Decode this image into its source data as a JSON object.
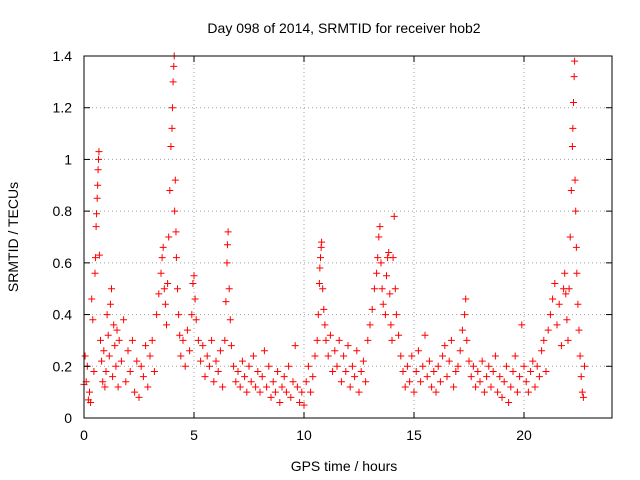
{
  "chart_data": {
    "type": "scatter",
    "title": "Day 098 of 2014, SRMTID for receiver hob2",
    "xlabel": "GPS time / hours",
    "ylabel": "SRMTID / TECUs",
    "xlim": [
      0,
      24
    ],
    "ylim": [
      0,
      1.4
    ],
    "x_ticks": [
      0,
      5,
      10,
      15,
      20
    ],
    "x_tick_labels": [
      "0",
      "5",
      "10",
      "15",
      "20"
    ],
    "y_ticks": [
      0,
      0.2,
      0.4,
      0.6,
      0.8,
      1.0,
      1.2,
      1.4
    ],
    "y_tick_labels": [
      "0",
      "0.2",
      "0.4",
      "0.6",
      "0.8",
      "1",
      "1.2",
      "1.4"
    ],
    "grid": true,
    "marker": "+",
    "color": "#ff0000",
    "series": [
      {
        "name": "SRMTID",
        "points": [
          [
            0.0,
            0.13
          ],
          [
            0.05,
            0.24
          ],
          [
            0.1,
            0.14
          ],
          [
            0.15,
            0.2
          ],
          [
            0.2,
            0.07
          ],
          [
            0.25,
            0.1
          ],
          [
            0.3,
            0.06
          ],
          [
            0.35,
            0.46
          ],
          [
            0.4,
            0.38
          ],
          [
            0.45,
            0.18
          ],
          [
            0.5,
            0.56
          ],
          [
            0.52,
            0.62
          ],
          [
            0.55,
            0.74
          ],
          [
            0.57,
            0.79
          ],
          [
            0.6,
            0.85
          ],
          [
            0.62,
            0.9
          ],
          [
            0.64,
            0.96
          ],
          [
            0.66,
            1.0
          ],
          [
            0.68,
            1.03
          ],
          [
            0.7,
            0.63
          ],
          [
            0.75,
            0.3
          ],
          [
            0.8,
            0.22
          ],
          [
            0.85,
            0.14
          ],
          [
            0.9,
            0.26
          ],
          [
            0.95,
            0.12
          ],
          [
            1.0,
            0.18
          ],
          [
            1.05,
            0.4
          ],
          [
            1.1,
            0.32
          ],
          [
            1.15,
            0.24
          ],
          [
            1.2,
            0.44
          ],
          [
            1.25,
            0.5
          ],
          [
            1.3,
            0.16
          ],
          [
            1.35,
            0.36
          ],
          [
            1.4,
            0.28
          ],
          [
            1.45,
            0.2
          ],
          [
            1.5,
            0.34
          ],
          [
            1.55,
            0.12
          ],
          [
            1.6,
            0.3
          ],
          [
            1.7,
            0.22
          ],
          [
            1.8,
            0.38
          ],
          [
            1.9,
            0.14
          ],
          [
            2.0,
            0.26
          ],
          [
            2.1,
            0.18
          ],
          [
            2.2,
            0.3
          ],
          [
            2.3,
            0.1
          ],
          [
            2.4,
            0.22
          ],
          [
            2.5,
            0.08
          ],
          [
            2.6,
            0.2
          ],
          [
            2.7,
            0.16
          ],
          [
            2.8,
            0.28
          ],
          [
            2.9,
            0.12
          ],
          [
            3.0,
            0.24
          ],
          [
            3.1,
            0.3
          ],
          [
            3.2,
            0.18
          ],
          [
            3.3,
            0.4
          ],
          [
            3.4,
            0.48
          ],
          [
            3.5,
            0.56
          ],
          [
            3.55,
            0.62
          ],
          [
            3.6,
            0.66
          ],
          [
            3.65,
            0.5
          ],
          [
            3.7,
            0.44
          ],
          [
            3.75,
            0.36
          ],
          [
            3.8,
            0.52
          ],
          [
            3.85,
            0.7
          ],
          [
            3.9,
            0.88
          ],
          [
            3.95,
            1.05
          ],
          [
            4.0,
            1.12
          ],
          [
            4.02,
            1.2
          ],
          [
            4.05,
            1.3
          ],
          [
            4.08,
            1.36
          ],
          [
            4.1,
            1.4
          ],
          [
            4.12,
            0.8
          ],
          [
            4.15,
            0.92
          ],
          [
            4.18,
            0.72
          ],
          [
            4.2,
            0.62
          ],
          [
            4.25,
            0.5
          ],
          [
            4.3,
            0.4
          ],
          [
            4.35,
            0.32
          ],
          [
            4.4,
            0.24
          ],
          [
            4.5,
            0.3
          ],
          [
            4.6,
            0.2
          ],
          [
            4.7,
            0.34
          ],
          [
            4.8,
            0.26
          ],
          [
            4.9,
            0.4
          ],
          [
            4.95,
            0.52
          ],
          [
            5.0,
            0.55
          ],
          [
            5.05,
            0.46
          ],
          [
            5.1,
            0.38
          ],
          [
            5.2,
            0.3
          ],
          [
            5.3,
            0.22
          ],
          [
            5.4,
            0.28
          ],
          [
            5.5,
            0.16
          ],
          [
            5.6,
            0.24
          ],
          [
            5.7,
            0.2
          ],
          [
            5.8,
            0.3
          ],
          [
            5.9,
            0.14
          ],
          [
            6.0,
            0.22
          ],
          [
            6.1,
            0.18
          ],
          [
            6.2,
            0.26
          ],
          [
            6.3,
            0.12
          ],
          [
            6.4,
            0.3
          ],
          [
            6.45,
            0.45
          ],
          [
            6.5,
            0.6
          ],
          [
            6.52,
            0.67
          ],
          [
            6.55,
            0.72
          ],
          [
            6.6,
            0.5
          ],
          [
            6.65,
            0.38
          ],
          [
            6.7,
            0.28
          ],
          [
            6.8,
            0.2
          ],
          [
            6.9,
            0.14
          ],
          [
            7.0,
            0.18
          ],
          [
            7.1,
            0.12
          ],
          [
            7.2,
            0.22
          ],
          [
            7.3,
            0.16
          ],
          [
            7.4,
            0.1
          ],
          [
            7.5,
            0.2
          ],
          [
            7.6,
            0.14
          ],
          [
            7.7,
            0.24
          ],
          [
            7.8,
            0.12
          ],
          [
            7.9,
            0.18
          ],
          [
            8.0,
            0.1
          ],
          [
            8.1,
            0.16
          ],
          [
            8.2,
            0.26
          ],
          [
            8.3,
            0.12
          ],
          [
            8.4,
            0.2
          ],
          [
            8.5,
            0.08
          ],
          [
            8.6,
            0.14
          ],
          [
            8.7,
            0.1
          ],
          [
            8.8,
            0.18
          ],
          [
            8.9,
            0.06
          ],
          [
            9.0,
            0.12
          ],
          [
            9.1,
            0.16
          ],
          [
            9.2,
            0.1
          ],
          [
            9.3,
            0.2
          ],
          [
            9.4,
            0.08
          ],
          [
            9.5,
            0.14
          ],
          [
            9.6,
            0.28
          ],
          [
            9.7,
            0.12
          ],
          [
            9.8,
            0.06
          ],
          [
            9.9,
            0.1
          ],
          [
            10.0,
            0.05
          ],
          [
            10.1,
            0.14
          ],
          [
            10.2,
            0.2
          ],
          [
            10.3,
            0.1
          ],
          [
            10.4,
            0.16
          ],
          [
            10.5,
            0.24
          ],
          [
            10.6,
            0.3
          ],
          [
            10.65,
            0.4
          ],
          [
            10.7,
            0.52
          ],
          [
            10.72,
            0.58
          ],
          [
            10.75,
            0.62
          ],
          [
            10.78,
            0.66
          ],
          [
            10.8,
            0.68
          ],
          [
            10.85,
            0.5
          ],
          [
            10.9,
            0.42
          ],
          [
            10.95,
            0.36
          ],
          [
            11.0,
            0.3
          ],
          [
            11.1,
            0.24
          ],
          [
            11.2,
            0.32
          ],
          [
            11.3,
            0.18
          ],
          [
            11.4,
            0.26
          ],
          [
            11.5,
            0.2
          ],
          [
            11.6,
            0.3
          ],
          [
            11.7,
            0.14
          ],
          [
            11.8,
            0.24
          ],
          [
            11.9,
            0.18
          ],
          [
            12.0,
            0.28
          ],
          [
            12.1,
            0.12
          ],
          [
            12.2,
            0.2
          ],
          [
            12.3,
            0.16
          ],
          [
            12.4,
            0.26
          ],
          [
            12.5,
            0.1
          ],
          [
            12.6,
            0.18
          ],
          [
            12.7,
            0.22
          ],
          [
            12.8,
            0.14
          ],
          [
            12.9,
            0.3
          ],
          [
            13.0,
            0.36
          ],
          [
            13.1,
            0.42
          ],
          [
            13.2,
            0.5
          ],
          [
            13.3,
            0.56
          ],
          [
            13.35,
            0.62
          ],
          [
            13.4,
            0.7
          ],
          [
            13.45,
            0.74
          ],
          [
            13.5,
            0.6
          ],
          [
            13.55,
            0.5
          ],
          [
            13.6,
            0.44
          ],
          [
            13.7,
            0.4
          ],
          [
            13.75,
            0.55
          ],
          [
            13.8,
            0.62
          ],
          [
            13.85,
            0.64
          ],
          [
            13.9,
            0.48
          ],
          [
            13.95,
            0.36
          ],
          [
            14.0,
            0.3
          ],
          [
            14.05,
            0.62
          ],
          [
            14.1,
            0.78
          ],
          [
            14.15,
            0.5
          ],
          [
            14.2,
            0.4
          ],
          [
            14.3,
            0.32
          ],
          [
            14.4,
            0.24
          ],
          [
            14.5,
            0.18
          ],
          [
            14.6,
            0.12
          ],
          [
            14.7,
            0.2
          ],
          [
            14.8,
            0.14
          ],
          [
            14.9,
            0.24
          ],
          [
            15.0,
            0.1
          ],
          [
            15.1,
            0.18
          ],
          [
            15.2,
            0.26
          ],
          [
            15.3,
            0.14
          ],
          [
            15.4,
            0.2
          ],
          [
            15.5,
            0.32
          ],
          [
            15.6,
            0.16
          ],
          [
            15.7,
            0.22
          ],
          [
            15.8,
            0.12
          ],
          [
            15.9,
            0.18
          ],
          [
            16.0,
            0.1
          ],
          [
            16.1,
            0.2
          ],
          [
            16.2,
            0.14
          ],
          [
            16.3,
            0.24
          ],
          [
            16.4,
            0.28
          ],
          [
            16.5,
            0.16
          ],
          [
            16.6,
            0.22
          ],
          [
            16.7,
            0.3
          ],
          [
            16.8,
            0.12
          ],
          [
            16.9,
            0.18
          ],
          [
            17.0,
            0.2
          ],
          [
            17.1,
            0.26
          ],
          [
            17.2,
            0.34
          ],
          [
            17.3,
            0.4
          ],
          [
            17.35,
            0.46
          ],
          [
            17.4,
            0.3
          ],
          [
            17.5,
            0.22
          ],
          [
            17.6,
            0.16
          ],
          [
            17.7,
            0.2
          ],
          [
            17.8,
            0.12
          ],
          [
            17.9,
            0.18
          ],
          [
            18.0,
            0.14
          ],
          [
            18.1,
            0.22
          ],
          [
            18.2,
            0.1
          ],
          [
            18.3,
            0.16
          ],
          [
            18.4,
            0.2
          ],
          [
            18.5,
            0.12
          ],
          [
            18.6,
            0.18
          ],
          [
            18.7,
            0.24
          ],
          [
            18.8,
            0.1
          ],
          [
            18.9,
            0.16
          ],
          [
            19.0,
            0.08
          ],
          [
            19.1,
            0.14
          ],
          [
            19.2,
            0.2
          ],
          [
            19.3,
            0.06
          ],
          [
            19.4,
            0.12
          ],
          [
            19.5,
            0.18
          ],
          [
            19.6,
            0.24
          ],
          [
            19.7,
            0.1
          ],
          [
            19.8,
            0.16
          ],
          [
            19.9,
            0.36
          ],
          [
            20.0,
            0.2
          ],
          [
            20.1,
            0.14
          ],
          [
            20.2,
            0.1
          ],
          [
            20.3,
            0.18
          ],
          [
            20.4,
            0.22
          ],
          [
            20.5,
            0.12
          ],
          [
            20.6,
            0.2
          ],
          [
            20.7,
            0.16
          ],
          [
            20.8,
            0.26
          ],
          [
            20.9,
            0.3
          ],
          [
            21.0,
            0.18
          ],
          [
            21.1,
            0.34
          ],
          [
            21.2,
            0.4
          ],
          [
            21.3,
            0.46
          ],
          [
            21.4,
            0.52
          ],
          [
            21.5,
            0.36
          ],
          [
            21.6,
            0.44
          ],
          [
            21.7,
            0.28
          ],
          [
            21.8,
            0.5
          ],
          [
            21.85,
            0.56
          ],
          [
            21.9,
            0.48
          ],
          [
            21.95,
            0.38
          ],
          [
            22.0,
            0.3
          ],
          [
            22.05,
            0.5
          ],
          [
            22.1,
            0.7
          ],
          [
            22.15,
            0.88
          ],
          [
            22.2,
            1.05
          ],
          [
            22.22,
            1.12
          ],
          [
            22.25,
            1.22
          ],
          [
            22.28,
            1.32
          ],
          [
            22.3,
            1.38
          ],
          [
            22.32,
            0.92
          ],
          [
            22.35,
            0.8
          ],
          [
            22.38,
            0.66
          ],
          [
            22.4,
            0.56
          ],
          [
            22.45,
            0.44
          ],
          [
            22.5,
            0.34
          ],
          [
            22.55,
            0.24
          ],
          [
            22.6,
            0.16
          ],
          [
            22.65,
            0.1
          ],
          [
            22.7,
            0.08
          ],
          [
            22.75,
            0.2
          ]
        ]
      }
    ]
  }
}
